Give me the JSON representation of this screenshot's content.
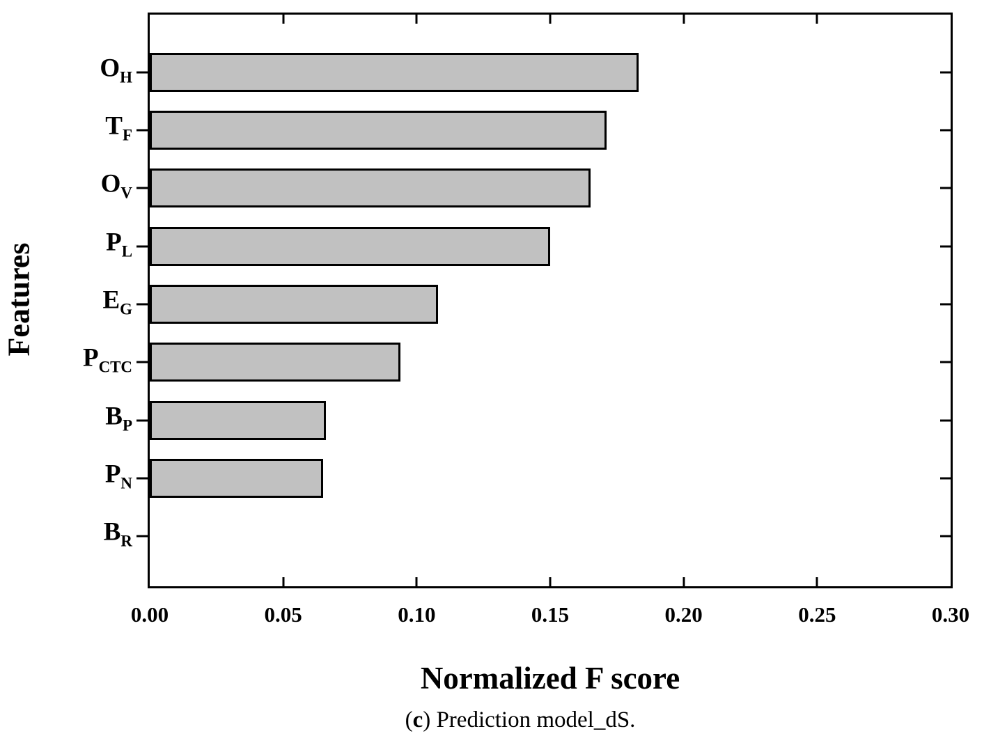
{
  "caption": {
    "open": "(",
    "letter": "c",
    "rest": ") Prediction model_dS."
  },
  "chart_data": {
    "type": "bar",
    "orientation": "horizontal",
    "title": "",
    "xlabel": "Normalized F score",
    "ylabel": "Features",
    "xlim": [
      0,
      0.3
    ],
    "x_ticks": [
      "0.00",
      "0.05",
      "0.10",
      "0.15",
      "0.20",
      "0.25",
      "0.30"
    ],
    "grid": false,
    "legend": null,
    "bar_color": "#c1c1c1",
    "bar_border_color": "#000000",
    "categories": [
      "O_H",
      "T_F",
      "O_V",
      "P_L",
      "E_G",
      "P_CTC",
      "B_P",
      "P_N",
      "B_R"
    ],
    "category_labels": [
      {
        "main": "O",
        "sub": "H"
      },
      {
        "main": "T",
        "sub": "F"
      },
      {
        "main": "O",
        "sub": "V"
      },
      {
        "main": "P",
        "sub": "L"
      },
      {
        "main": "E",
        "sub": "G"
      },
      {
        "main": "P",
        "sub": "CTC"
      },
      {
        "main": "B",
        "sub": "P"
      },
      {
        "main": "P",
        "sub": "N"
      },
      {
        "main": "B",
        "sub": "R"
      }
    ],
    "values": [
      0.183,
      0.171,
      0.165,
      0.15,
      0.108,
      0.094,
      0.066,
      0.065,
      0
    ]
  }
}
